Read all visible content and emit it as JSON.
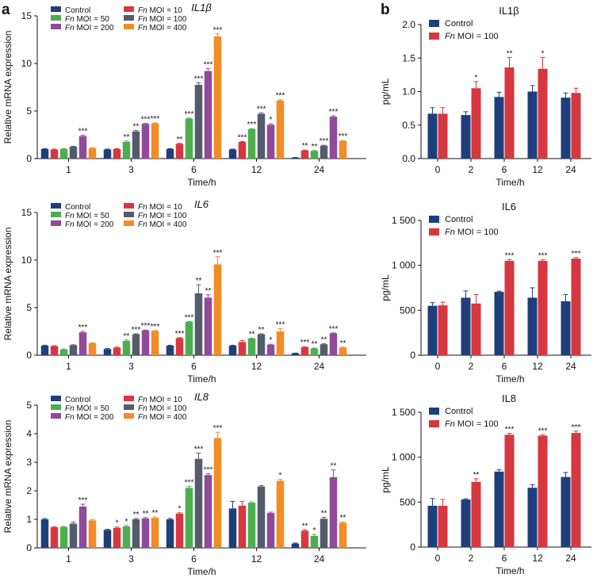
{
  "panels": {
    "a": "a",
    "b": "b"
  },
  "colors": {
    "control": "#1f3f7a",
    "moi10": "#d7373f",
    "moi50": "#4cae4f",
    "moi100": "#545c6c",
    "moi200": "#91499a",
    "moi400": "#f28c25",
    "axis": "#111111"
  },
  "legend_prefix": "Fn",
  "chart_data": [
    {
      "id": "a1",
      "type": "bar",
      "title": "IL1β",
      "title_italic": true,
      "xlabel": "Time/h",
      "ylabel": "Relative mRNA expression",
      "ylim": [
        0,
        15
      ],
      "yticks": [
        "0",
        "5",
        "10",
        "15"
      ],
      "categories": [
        "1",
        "3",
        "6",
        "12",
        "24"
      ],
      "series": [
        {
          "key": "control",
          "name": "Control",
          "values": [
            1.0,
            0.95,
            1.0,
            0.95,
            0.1
          ],
          "errors": [
            0.05,
            0.05,
            0.05,
            0.05,
            0.02
          ],
          "sig": [
            "",
            "",
            "",
            "",
            ""
          ]
        },
        {
          "key": "moi10",
          "name": "MOI = 10",
          "values": [
            0.95,
            1.0,
            1.55,
            1.75,
            0.85
          ],
          "errors": [
            0.05,
            0.05,
            0.05,
            0.05,
            0.05
          ],
          "sig": [
            "",
            "",
            "**",
            "***",
            "**"
          ]
        },
        {
          "key": "moi50",
          "name": "MOI = 50",
          "values": [
            1.0,
            1.75,
            4.2,
            3.1,
            0.8
          ],
          "errors": [
            0.05,
            0.1,
            0.05,
            0.05,
            0.05
          ],
          "sig": [
            "",
            "**",
            "***",
            "***",
            "**"
          ]
        },
        {
          "key": "moi100",
          "name": "MOI = 100",
          "values": [
            1.25,
            2.85,
            7.75,
            4.7,
            1.35
          ],
          "errors": [
            0.05,
            0.1,
            0.2,
            0.1,
            0.05
          ],
          "sig": [
            "",
            "**",
            "***",
            "***",
            "***"
          ]
        },
        {
          "key": "moi200",
          "name": "MOI = 200",
          "values": [
            2.35,
            3.65,
            9.2,
            3.55,
            4.4
          ],
          "errors": [
            0.1,
            0.05,
            0.25,
            0.1,
            0.1
          ],
          "sig": [
            "***",
            "***",
            "***",
            "*",
            "***"
          ]
        },
        {
          "key": "moi400",
          "name": "MOI = 400",
          "values": [
            1.1,
            3.7,
            12.85,
            6.1,
            1.85
          ],
          "errors": [
            0.05,
            0.05,
            0.25,
            0.1,
            0.05
          ],
          "sig": [
            "",
            "***",
            "***",
            "***",
            "***"
          ]
        }
      ]
    },
    {
      "id": "a2",
      "type": "bar",
      "title": "IL6",
      "title_italic": true,
      "xlabel": "Time/h",
      "ylabel": "Relative mRNA expression",
      "ylim": [
        0,
        15
      ],
      "yticks": [
        "0",
        "5",
        "10",
        "15"
      ],
      "categories": [
        "1",
        "3",
        "6",
        "12",
        "24"
      ],
      "series": [
        {
          "key": "control",
          "name": "Control",
          "values": [
            1.0,
            0.65,
            1.0,
            1.0,
            0.2
          ],
          "errors": [
            0.05,
            0.05,
            0.05,
            0.05,
            0.02
          ],
          "sig": [
            "",
            "",
            "",
            "",
            ""
          ]
        },
        {
          "key": "moi10",
          "name": "MOI = 10",
          "values": [
            0.95,
            0.8,
            1.8,
            1.4,
            0.85
          ],
          "errors": [
            0.05,
            0.05,
            0.05,
            0.15,
            0.05
          ],
          "sig": [
            "",
            "",
            "***",
            "",
            "***"
          ]
        },
        {
          "key": "moi50",
          "name": "MOI = 50",
          "values": [
            0.6,
            1.5,
            3.5,
            1.75,
            0.7
          ],
          "errors": [
            0.05,
            0.1,
            0.05,
            0.05,
            0.05
          ],
          "sig": [
            "",
            "**",
            "***",
            "**",
            "**"
          ]
        },
        {
          "key": "moi100",
          "name": "MOI = 100",
          "values": [
            1.05,
            2.2,
            6.5,
            2.2,
            1.15
          ],
          "errors": [
            0.05,
            0.05,
            0.9,
            0.05,
            0.05
          ],
          "sig": [
            "",
            "***",
            "**",
            "**",
            "**"
          ]
        },
        {
          "key": "moi200",
          "name": "MOI = 200",
          "values": [
            2.4,
            2.6,
            6.05,
            1.1,
            2.3
          ],
          "errors": [
            0.1,
            0.05,
            0.3,
            0.05,
            0.05
          ],
          "sig": [
            "***",
            "***",
            "**",
            "*",
            "***"
          ]
        },
        {
          "key": "moi400",
          "name": "MOI = 400",
          "values": [
            1.25,
            2.55,
            9.55,
            2.5,
            0.8
          ],
          "errors": [
            0.05,
            0.05,
            0.8,
            0.3,
            0.05
          ],
          "sig": [
            "",
            "***",
            "***",
            "***",
            "**"
          ]
        }
      ]
    },
    {
      "id": "a3",
      "type": "bar",
      "title": "IL8",
      "title_italic": true,
      "xlabel": "Time/h",
      "ylabel": "Relative mRNA expression",
      "ylim": [
        0,
        5
      ],
      "yticks": [
        "0",
        "1",
        "2",
        "3",
        "4",
        "5"
      ],
      "categories": [
        "1",
        "3",
        "6",
        "12",
        "24"
      ],
      "series": [
        {
          "key": "control",
          "name": "Control",
          "values": [
            1.0,
            0.63,
            1.0,
            1.38,
            0.15
          ],
          "errors": [
            0.03,
            0.02,
            0.03,
            0.25,
            0.02
          ],
          "sig": [
            "",
            "",
            "",
            "",
            ""
          ]
        },
        {
          "key": "moi10",
          "name": "MOI = 10",
          "values": [
            0.72,
            0.7,
            1.2,
            1.48,
            0.6
          ],
          "errors": [
            0.02,
            0.03,
            0.03,
            0.15,
            0.03
          ],
          "sig": [
            "",
            "*",
            "*",
            "",
            "**"
          ]
        },
        {
          "key": "moi50",
          "name": "MOI = 50",
          "values": [
            0.73,
            0.75,
            2.1,
            1.58,
            0.42
          ],
          "errors": [
            0.02,
            0.03,
            0.05,
            0.03,
            0.05
          ],
          "sig": [
            "",
            "*",
            "***",
            "",
            "*"
          ]
        },
        {
          "key": "moi100",
          "name": "MOI = 100",
          "values": [
            0.85,
            1.0,
            3.12,
            2.15,
            1.02
          ],
          "errors": [
            0.05,
            0.03,
            0.2,
            0.03,
            0.05
          ],
          "sig": [
            "",
            "**",
            "***",
            "",
            "**"
          ]
        },
        {
          "key": "moi200",
          "name": "MOI = 200",
          "values": [
            1.45,
            1.03,
            2.55,
            1.22,
            2.48
          ],
          "errors": [
            0.08,
            0.03,
            0.05,
            0.03,
            0.25
          ],
          "sig": [
            "***",
            "**",
            "***",
            "",
            "**"
          ]
        },
        {
          "key": "moi400",
          "name": "MOI = 400",
          "values": [
            0.96,
            1.05,
            3.85,
            2.35,
            0.88
          ],
          "errors": [
            0.03,
            0.03,
            0.2,
            0.05,
            0.03
          ],
          "sig": [
            "",
            "**",
            "***",
            "*",
            "**"
          ]
        }
      ]
    },
    {
      "id": "b1",
      "type": "bar",
      "title": "IL1β",
      "title_italic": false,
      "xlabel": "Time/h",
      "ylabel": "pg/mL",
      "ylim": [
        0,
        2
      ],
      "yticks": [
        "0.0",
        "0.5",
        "1.0",
        "1.5",
        "2.0"
      ],
      "categories": [
        "0",
        "2",
        "6",
        "12",
        "24"
      ],
      "series": [
        {
          "key": "control",
          "name": "Control",
          "values": [
            0.67,
            0.65,
            0.92,
            1.0,
            0.91
          ],
          "errors": [
            0.09,
            0.05,
            0.07,
            0.09,
            0.07
          ],
          "sig": [
            "",
            "",
            "",
            "",
            ""
          ]
        },
        {
          "key": "moi10",
          "name": "MOI = 100",
          "values": [
            0.67,
            1.05,
            1.36,
            1.34,
            0.98
          ],
          "errors": [
            0.09,
            0.1,
            0.15,
            0.17,
            0.07
          ],
          "sig": [
            "",
            "*",
            "**",
            "*",
            ""
          ]
        }
      ]
    },
    {
      "id": "b2",
      "type": "bar",
      "title": "IL6",
      "title_italic": false,
      "xlabel": "Time/h",
      "ylabel": "pg/mL",
      "ylim": [
        0,
        1500
      ],
      "yticks": [
        "0",
        "500",
        "1 000",
        "1 500"
      ],
      "categories": [
        "0",
        "2",
        "6",
        "12",
        "24"
      ],
      "series": [
        {
          "key": "control",
          "name": "Control",
          "values": [
            550,
            640,
            705,
            640,
            600
          ],
          "errors": [
            35,
            75,
            8,
            110,
            75
          ],
          "sig": [
            "",
            "",
            "",
            "",
            ""
          ]
        },
        {
          "key": "moi10",
          "name": "MOI = 100",
          "values": [
            555,
            575,
            1050,
            1050,
            1075
          ],
          "errors": [
            35,
            100,
            15,
            12,
            12
          ],
          "sig": [
            "",
            "",
            "***",
            "***",
            "***"
          ]
        }
      ]
    },
    {
      "id": "b3",
      "type": "bar",
      "title": "IL8",
      "title_italic": false,
      "xlabel": "Time/h",
      "ylabel": "pg/mL",
      "ylim": [
        0,
        1500
      ],
      "yticks": [
        "0",
        "500",
        "1 000",
        "1 500"
      ],
      "categories": [
        "0",
        "2",
        "6",
        "12",
        "24"
      ],
      "series": [
        {
          "key": "control",
          "name": "Control",
          "values": [
            460,
            530,
            840,
            660,
            780
          ],
          "errors": [
            80,
            8,
            20,
            35,
            50
          ],
          "sig": [
            "",
            "",
            "",
            "",
            ""
          ]
        },
        {
          "key": "moi10",
          "name": "MOI = 100",
          "values": [
            460,
            725,
            1250,
            1240,
            1270
          ],
          "errors": [
            70,
            35,
            15,
            10,
            20
          ],
          "sig": [
            "",
            "**",
            "***",
            "***",
            "***"
          ]
        }
      ]
    }
  ]
}
